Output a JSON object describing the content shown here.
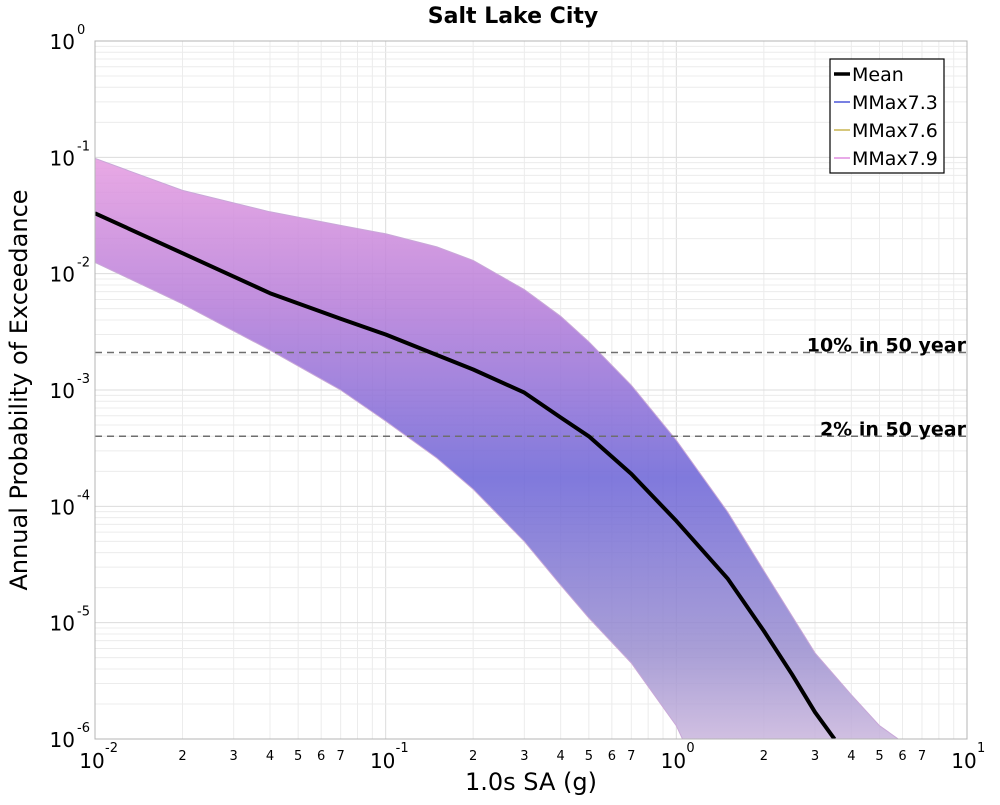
{
  "chart_data": {
    "type": "line",
    "title": "Salt Lake City",
    "xlabel": "1.0s SA (g)",
    "ylabel": "Annual Probability of Exceedance",
    "xscale": "log",
    "yscale": "log",
    "xlim": [
      0.01,
      10
    ],
    "ylim": [
      1e-06,
      1
    ],
    "grid": true,
    "legend_position": "top-right",
    "x_ticks_major": [
      {
        "value": 0.01,
        "base": "10",
        "exp": "-2"
      },
      {
        "value": 0.1,
        "base": "10",
        "exp": "-1"
      },
      {
        "value": 1,
        "base": "10",
        "exp": "0"
      },
      {
        "value": 10,
        "base": "10",
        "exp": "1"
      }
    ],
    "x_ticks_minor_labels": [
      "2",
      "3",
      "4",
      "5",
      "6",
      "7"
    ],
    "y_ticks_major": [
      {
        "value": 1e-06,
        "base": "10",
        "exp": "-6"
      },
      {
        "value": 1e-05,
        "base": "10",
        "exp": "-5"
      },
      {
        "value": 0.0001,
        "base": "10",
        "exp": "-4"
      },
      {
        "value": 0.001,
        "base": "10",
        "exp": "-3"
      },
      {
        "value": 0.01,
        "base": "10",
        "exp": "-2"
      },
      {
        "value": 0.1,
        "base": "10",
        "exp": "-1"
      },
      {
        "value": 1,
        "base": "10",
        "exp": "0"
      }
    ],
    "series": [
      {
        "name": "Mean",
        "color": "#000000",
        "x": [
          0.01,
          0.02,
          0.04,
          0.07,
          0.1,
          0.15,
          0.2,
          0.3,
          0.4,
          0.5,
          0.7,
          1.0,
          1.5,
          2.0,
          2.5,
          3.0,
          3.5
        ],
        "y": [
          0.033,
          0.015,
          0.0068,
          0.0041,
          0.003,
          0.002,
          0.0015,
          0.00095,
          0.00058,
          0.0004,
          0.00019,
          7.5e-05,
          2.4e-05,
          8.5e-06,
          3.6e-06,
          1.7e-06,
          1e-06
        ]
      },
      {
        "name": "MMax7.3",
        "color": "#4a55d8"
      },
      {
        "name": "MMax7.6",
        "color": "#c8b450"
      },
      {
        "name": "MMax7.9",
        "color": "#e08ee0"
      }
    ],
    "band": {
      "upper_x": [
        0.01,
        0.02,
        0.04,
        0.07,
        0.1,
        0.15,
        0.2,
        0.3,
        0.4,
        0.5,
        0.7,
        1.0,
        1.5,
        2.0,
        3.0,
        4.0,
        5.0,
        5.8
      ],
      "upper_y": [
        0.098,
        0.052,
        0.034,
        0.026,
        0.022,
        0.017,
        0.013,
        0.0073,
        0.0043,
        0.0026,
        0.0011,
        0.00037,
        9e-05,
        2.8e-05,
        5.5e-06,
        2.4e-06,
        1.3e-06,
        1e-06
      ],
      "lower_x": [
        0.01,
        0.02,
        0.04,
        0.07,
        0.1,
        0.15,
        0.2,
        0.3,
        0.4,
        0.5,
        0.7,
        1.0,
        1.05
      ],
      "lower_y": [
        0.0125,
        0.0055,
        0.0022,
        0.001,
        0.00054,
        0.00026,
        0.00014,
        5e-05,
        2.1e-05,
        1.1e-05,
        4.5e-06,
        1.3e-06,
        1e-06
      ]
    },
    "reference_lines": [
      {
        "label": "10% in 50 year",
        "y": 0.0021
      },
      {
        "label": "2% in 50 year",
        "y": 0.0004
      }
    ]
  }
}
